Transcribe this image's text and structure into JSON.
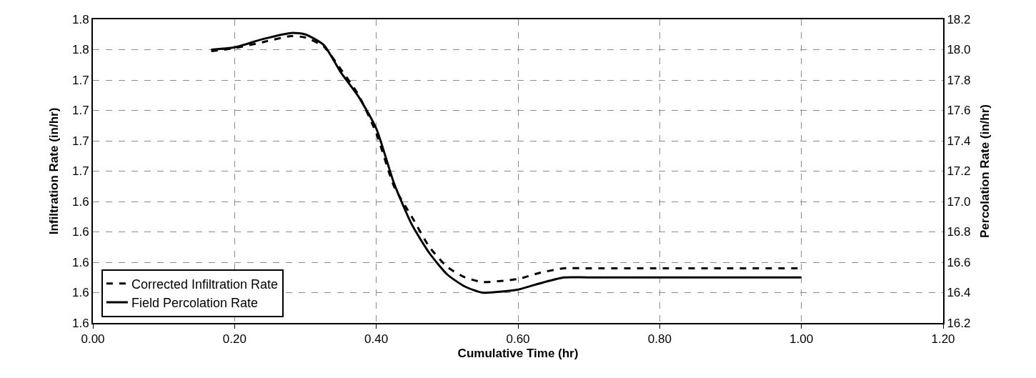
{
  "chart_data": {
    "type": "line",
    "xlabel": "Cumulative Time (hr)",
    "ylabel": "Infiltration Rate (in/hr)",
    "y2label": "Percolation Rate (in/hr)",
    "xlim": [
      0,
      1.2
    ],
    "xticks": [
      {
        "value": 0,
        "label": "0.00"
      },
      {
        "value": 0.2,
        "label": "0.20"
      },
      {
        "value": 0.4,
        "label": "0.40"
      },
      {
        "value": 0.6,
        "label": "0.60"
      },
      {
        "value": 0.8,
        "label": "0.80"
      },
      {
        "value": 1.0,
        "label": "1.00"
      },
      {
        "value": 1.2,
        "label": "1.20"
      }
    ],
    "ylim": [
      1.566,
      1.771
    ],
    "yticks": [
      {
        "value": 1.566,
        "label": "1.6"
      },
      {
        "value": 1.5865,
        "label": "1.6"
      },
      {
        "value": 1.607,
        "label": "1.6"
      },
      {
        "value": 1.6275,
        "label": "1.6"
      },
      {
        "value": 1.648,
        "label": "1.6"
      },
      {
        "value": 1.6685,
        "label": "1.7"
      },
      {
        "value": 1.689,
        "label": "1.7"
      },
      {
        "value": 1.7095,
        "label": "1.7"
      },
      {
        "value": 1.73,
        "label": "1.7"
      },
      {
        "value": 1.7505,
        "label": "1.8"
      },
      {
        "value": 1.771,
        "label": "1.8"
      }
    ],
    "y2lim": [
      16.2,
      18.2
    ],
    "y2ticks": [
      {
        "value": 16.2,
        "label": "16.2"
      },
      {
        "value": 16.4,
        "label": "16.4"
      },
      {
        "value": 16.6,
        "label": "16.6"
      },
      {
        "value": 16.8,
        "label": "16.8"
      },
      {
        "value": 17.0,
        "label": "17.0"
      },
      {
        "value": 17.2,
        "label": "17.2"
      },
      {
        "value": 17.4,
        "label": "17.4"
      },
      {
        "value": 17.6,
        "label": "17.6"
      },
      {
        "value": 17.8,
        "label": "17.8"
      },
      {
        "value": 18.0,
        "label": "18.0"
      },
      {
        "value": 18.2,
        "label": "18.2"
      }
    ],
    "grid": true,
    "legend": "bottom left",
    "marker": "none",
    "series": [
      {
        "name": "Corrected Infiltration Rate",
        "color": "#000000",
        "line_style": "dashed",
        "x": [
          0.167,
          0.2,
          0.24,
          0.28,
          0.3,
          0.326,
          0.35,
          0.375,
          0.4,
          0.425,
          0.45,
          0.475,
          0.5,
          0.525,
          0.55,
          0.6,
          0.63,
          0.665,
          0.7,
          0.8,
          0.9,
          1.0
        ],
        "values": [
          1.7495,
          1.7515,
          1.7556,
          1.7597,
          1.7587,
          1.7526,
          1.7372,
          1.7198,
          1.6941,
          1.6583,
          1.6378,
          1.6173,
          1.6039,
          1.5968,
          1.5937,
          1.5957,
          1.5998,
          1.6029,
          1.6029,
          1.6029,
          1.6029,
          1.6029
        ]
      },
      {
        "name": "Field Percolation Rate",
        "color": "#000000",
        "line_style": "solid",
        "axis": "y2",
        "x": [
          0.167,
          0.2,
          0.24,
          0.28,
          0.3,
          0.326,
          0.35,
          0.375,
          0.4,
          0.425,
          0.45,
          0.475,
          0.5,
          0.525,
          0.55,
          0.6,
          0.63,
          0.665,
          0.7,
          0.8,
          0.9,
          1.0
        ],
        "values": [
          18.0,
          18.015,
          18.07,
          18.11,
          18.1,
          18.03,
          17.85,
          17.69,
          17.48,
          17.12,
          16.85,
          16.66,
          16.52,
          16.44,
          16.4,
          16.42,
          16.46,
          16.5,
          16.5,
          16.5,
          16.5,
          16.5
        ]
      }
    ]
  }
}
